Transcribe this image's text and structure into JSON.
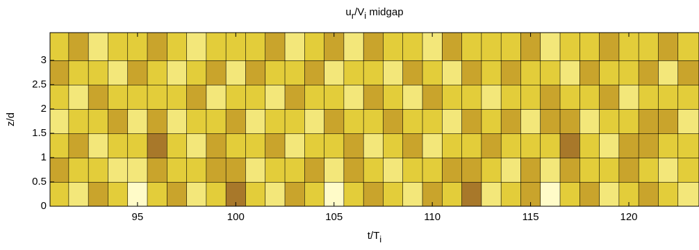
{
  "chart_data": {
    "type": "contourf",
    "title": [
      {
        "text": "u"
      },
      {
        "text": "r",
        "sub": true
      },
      {
        "text": "/V"
      },
      {
        "text": "i",
        "sub": true
      },
      {
        "text": " midgap"
      }
    ],
    "xlabel": [
      {
        "text": "t/T"
      },
      {
        "text": "i",
        "sub": true
      }
    ],
    "ylabel": "z/d",
    "x": [
      91,
      92,
      93,
      94,
      95,
      96,
      97,
      98,
      99,
      100,
      101,
      102,
      103,
      104,
      105,
      106,
      107,
      108,
      109,
      110,
      111,
      112,
      113,
      114,
      115,
      116,
      117,
      118,
      119,
      120,
      121,
      122,
      123
    ],
    "y": [
      0.25,
      0.75,
      1.25,
      1.75,
      2.25,
      2.75,
      3.25
    ],
    "z": [
      [
        2,
        1,
        3,
        2,
        0,
        2,
        3,
        1,
        2,
        4,
        2,
        1,
        3,
        2,
        0,
        2,
        3,
        2,
        1,
        3,
        2,
        4,
        1,
        2,
        3,
        0,
        2,
        3,
        1,
        2,
        3,
        2,
        1
      ],
      [
        3,
        2,
        2,
        1,
        1,
        3,
        2,
        2,
        3,
        3,
        1,
        2,
        2,
        3,
        1,
        3,
        2,
        1,
        2,
        2,
        3,
        3,
        2,
        1,
        3,
        1,
        3,
        2,
        2,
        3,
        2,
        1,
        2
      ],
      [
        2,
        3,
        1,
        2,
        2,
        4,
        2,
        1,
        3,
        2,
        2,
        3,
        1,
        2,
        2,
        3,
        1,
        2,
        3,
        1,
        2,
        2,
        3,
        2,
        2,
        2,
        4,
        2,
        1,
        3,
        3,
        2,
        2
      ],
      [
        1,
        2,
        2,
        3,
        1,
        3,
        1,
        2,
        2,
        3,
        1,
        2,
        2,
        1,
        3,
        2,
        2,
        3,
        2,
        2,
        1,
        3,
        2,
        3,
        1,
        3,
        3,
        1,
        2,
        2,
        3,
        3,
        1
      ],
      [
        2,
        1,
        3,
        2,
        2,
        2,
        2,
        3,
        1,
        2,
        2,
        1,
        3,
        2,
        2,
        1,
        3,
        2,
        1,
        3,
        2,
        2,
        1,
        2,
        2,
        3,
        2,
        2,
        3,
        1,
        2,
        2,
        2
      ],
      [
        3,
        2,
        2,
        1,
        3,
        2,
        1,
        2,
        3,
        1,
        3,
        2,
        2,
        3,
        1,
        2,
        2,
        1,
        3,
        2,
        1,
        3,
        2,
        3,
        2,
        2,
        1,
        3,
        2,
        2,
        3,
        1,
        3
      ],
      [
        2,
        3,
        1,
        2,
        2,
        3,
        2,
        1,
        2,
        2,
        2,
        3,
        1,
        2,
        3,
        1,
        3,
        2,
        2,
        1,
        3,
        2,
        2,
        2,
        3,
        1,
        2,
        2,
        3,
        2,
        2,
        3,
        2
      ]
    ],
    "colors": [
      "#fffbc8",
      "#f3e77a",
      "#e3cd3a",
      "#c9a42c",
      "#a8782a"
    ],
    "xlim": [
      90.55,
      123.57
    ],
    "ylim": [
      0,
      3.57
    ],
    "xticks": [
      95,
      100,
      105,
      110,
      115,
      120
    ],
    "yticks": [
      0,
      0.5,
      1,
      1.5,
      2,
      2.5,
      3
    ]
  }
}
